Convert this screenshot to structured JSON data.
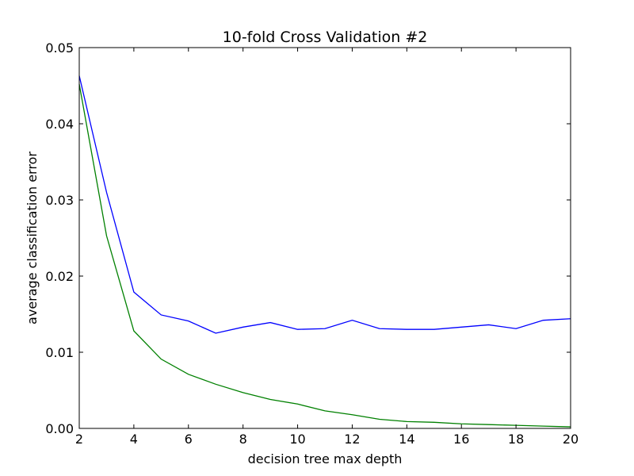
{
  "chart_data": {
    "type": "line",
    "title": "10-fold Cross Validation #2",
    "xlabel": "decision tree max depth",
    "ylabel": "average classification error",
    "xlim": [
      2,
      20
    ],
    "ylim": [
      0,
      0.05
    ],
    "xticks": [
      2,
      4,
      6,
      8,
      10,
      12,
      14,
      16,
      18,
      20
    ],
    "xtick_labels": [
      "2",
      "4",
      "6",
      "8",
      "10",
      "12",
      "14",
      "16",
      "18",
      "20"
    ],
    "yticks": [
      0,
      0.01,
      0.02,
      0.03,
      0.04,
      0.05
    ],
    "ytick_labels": [
      "0.00",
      "0.01",
      "0.02",
      "0.03",
      "0.04",
      "0.05"
    ],
    "grid": false,
    "x": [
      2,
      3,
      4,
      5,
      6,
      7,
      8,
      9,
      10,
      11,
      12,
      13,
      14,
      15,
      16,
      17,
      18,
      19,
      20
    ],
    "series": [
      {
        "color": "#0000ff",
        "values": [
          0.0463,
          0.031,
          0.0179,
          0.0149,
          0.0141,
          0.0125,
          0.0133,
          0.0139,
          0.013,
          0.0131,
          0.0142,
          0.0131,
          0.013,
          0.013,
          0.0133,
          0.0136,
          0.0131,
          0.0142,
          0.0144
        ]
      },
      {
        "color": "#008000",
        "values": [
          0.0452,
          0.0253,
          0.0128,
          0.0091,
          0.0071,
          0.0058,
          0.0047,
          0.0038,
          0.0032,
          0.0023,
          0.0018,
          0.0012,
          0.0009,
          0.0008,
          0.0006,
          0.0005,
          0.0004,
          0.0003,
          0.0002
        ]
      }
    ]
  }
}
